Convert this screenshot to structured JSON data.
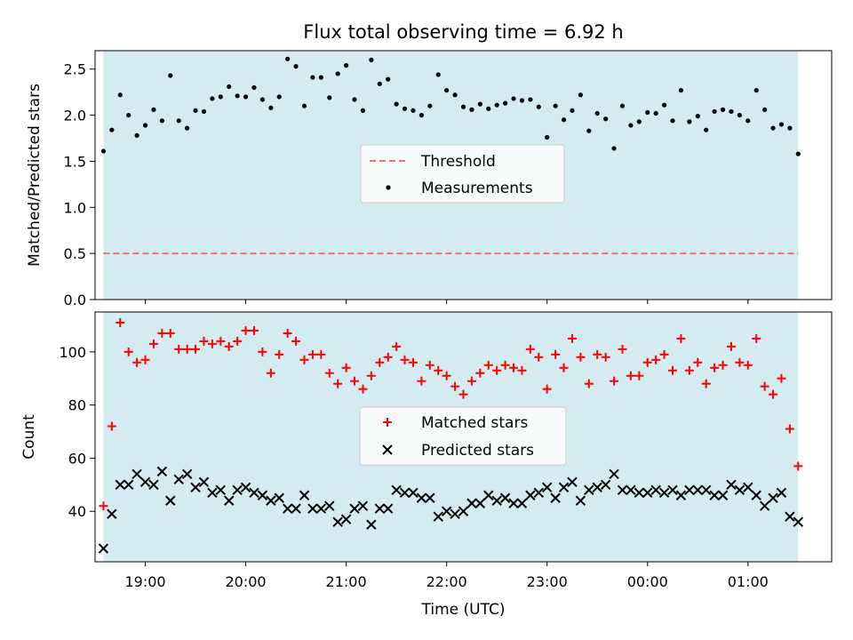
{
  "chart_data": [
    {
      "type": "scatter",
      "title": "Flux total observing time = 6.92 h",
      "xlabel": "",
      "ylabel": "Matched/Predicted stars",
      "ylim": [
        0.0,
        2.7
      ],
      "yticks": [
        "0.0",
        "0.5",
        "1.0",
        "1.5",
        "2.0",
        "2.5"
      ],
      "xlim": [
        "18:30",
        "01:50"
      ],
      "xticks": [
        "19:00",
        "20:00",
        "21:00",
        "22:00",
        "23:00",
        "00:00",
        "01:00"
      ],
      "shaded_range": [
        "18:35",
        "01:30"
      ],
      "shade_color": "#d4ebf1",
      "threshold": {
        "name": "Threshold",
        "value": 0.5,
        "color": "#f07070",
        "style": "dashed"
      },
      "legend": {
        "position": "center",
        "entries": [
          "Threshold",
          "Measurements"
        ]
      },
      "series": [
        {
          "name": "Measurements",
          "color": "#000000",
          "marker": "dot",
          "x": [
            "18:35",
            "18:40",
            "18:45",
            "18:50",
            "18:55",
            "19:00",
            "19:05",
            "19:10",
            "19:15",
            "19:20",
            "19:25",
            "19:30",
            "19:35",
            "19:40",
            "19:45",
            "19:50",
            "19:55",
            "20:00",
            "20:05",
            "20:10",
            "20:15",
            "20:20",
            "20:25",
            "20:30",
            "20:35",
            "20:40",
            "20:45",
            "20:50",
            "20:55",
            "21:00",
            "21:05",
            "21:10",
            "21:15",
            "21:20",
            "21:25",
            "21:30",
            "21:35",
            "21:40",
            "21:45",
            "21:50",
            "21:55",
            "22:00",
            "22:05",
            "22:10",
            "22:15",
            "22:20",
            "22:25",
            "22:30",
            "22:35",
            "22:40",
            "22:45",
            "22:50",
            "22:55",
            "23:00",
            "23:05",
            "23:10",
            "23:15",
            "23:20",
            "23:25",
            "23:30",
            "23:35",
            "23:40",
            "23:45",
            "23:50",
            "23:55",
            "00:00",
            "00:05",
            "00:10",
            "00:15",
            "00:20",
            "00:25",
            "00:30",
            "00:35",
            "00:40",
            "00:45",
            "00:50",
            "00:55",
            "01:00",
            "01:05",
            "01:10",
            "01:15",
            "01:20",
            "01:25",
            "01:30"
          ],
          "y": [
            1.61,
            1.84,
            2.22,
            2.0,
            1.78,
            1.89,
            2.06,
            1.94,
            2.43,
            1.94,
            1.86,
            2.05,
            2.04,
            2.18,
            2.2,
            2.31,
            2.21,
            2.2,
            2.3,
            2.17,
            2.08,
            2.2,
            2.61,
            2.53,
            2.1,
            2.41,
            2.41,
            2.19,
            2.45,
            2.54,
            2.17,
            2.05,
            2.6,
            2.34,
            2.39,
            2.12,
            2.07,
            2.05,
            2.0,
            2.1,
            2.44,
            2.27,
            2.22,
            2.09,
            2.06,
            2.12,
            2.07,
            2.11,
            2.13,
            2.18,
            2.16,
            2.17,
            2.09,
            1.76,
            2.1,
            1.95,
            2.05,
            2.22,
            1.83,
            2.02,
            1.96,
            1.64,
            2.1,
            1.89,
            1.93,
            2.03,
            2.02,
            2.11,
            1.94,
            2.27,
            1.93,
            1.99,
            1.84,
            2.04,
            2.06,
            2.04,
            2.0,
            1.94,
            2.27,
            2.06,
            1.86,
            1.9,
            1.86,
            1.58
          ]
        }
      ]
    },
    {
      "type": "scatter",
      "title": "",
      "xlabel": "Time (UTC)",
      "ylabel": "Count",
      "ylim": [
        21,
        115
      ],
      "yticks": [
        "40",
        "60",
        "80",
        "100"
      ],
      "xlim": [
        "18:30",
        "01:50"
      ],
      "xticks": [
        "19:00",
        "20:00",
        "21:00",
        "22:00",
        "23:00",
        "00:00",
        "01:00"
      ],
      "shaded_range": [
        "18:35",
        "01:30"
      ],
      "shade_color": "#d4ebf1",
      "legend": {
        "position": "center",
        "entries": [
          "Matched stars",
          "Predicted stars"
        ]
      },
      "series": [
        {
          "name": "Matched stars",
          "color": "#ff0000",
          "marker": "plus",
          "x": [
            "18:35",
            "18:40",
            "18:45",
            "18:50",
            "18:55",
            "19:00",
            "19:05",
            "19:10",
            "19:15",
            "19:20",
            "19:25",
            "19:30",
            "19:35",
            "19:40",
            "19:45",
            "19:50",
            "19:55",
            "20:00",
            "20:05",
            "20:10",
            "20:15",
            "20:20",
            "20:25",
            "20:30",
            "20:35",
            "20:40",
            "20:45",
            "20:50",
            "20:55",
            "21:00",
            "21:05",
            "21:10",
            "21:15",
            "21:20",
            "21:25",
            "21:30",
            "21:35",
            "21:40",
            "21:45",
            "21:50",
            "21:55",
            "22:00",
            "22:05",
            "22:10",
            "22:15",
            "22:20",
            "22:25",
            "22:30",
            "22:35",
            "22:40",
            "22:45",
            "22:50",
            "22:55",
            "23:00",
            "23:05",
            "23:10",
            "23:15",
            "23:20",
            "23:25",
            "23:30",
            "23:35",
            "23:40",
            "23:45",
            "23:50",
            "23:55",
            "00:00",
            "00:05",
            "00:10",
            "00:15",
            "00:20",
            "00:25",
            "00:30",
            "00:35",
            "00:40",
            "00:45",
            "00:50",
            "00:55",
            "01:00",
            "01:05",
            "01:10",
            "01:15",
            "01:20",
            "01:25",
            "01:30"
          ],
          "y": [
            42,
            72,
            111,
            100,
            96,
            97,
            103,
            107,
            107,
            101,
            101,
            101,
            104,
            103,
            104,
            102,
            104,
            108,
            108,
            100,
            92,
            99,
            107,
            104,
            97,
            99,
            99,
            92,
            88,
            94,
            89,
            86,
            91,
            96,
            98,
            102,
            97,
            96,
            89,
            95,
            93,
            91,
            87,
            84,
            89,
            92,
            95,
            93,
            95,
            94,
            93,
            101,
            98,
            86,
            99,
            94,
            105,
            98,
            88,
            99,
            98,
            89,
            101,
            91,
            91,
            96,
            97,
            99,
            93,
            105,
            93,
            96,
            88,
            94,
            95,
            102,
            96,
            95,
            105,
            87,
            84,
            90,
            71,
            57
          ]
        },
        {
          "name": "Predicted stars",
          "color": "#000000",
          "marker": "x",
          "x": [
            "18:35",
            "18:40",
            "18:45",
            "18:50",
            "18:55",
            "19:00",
            "19:05",
            "19:10",
            "19:15",
            "19:20",
            "19:25",
            "19:30",
            "19:35",
            "19:40",
            "19:45",
            "19:50",
            "19:55",
            "20:00",
            "20:05",
            "20:10",
            "20:15",
            "20:20",
            "20:25",
            "20:30",
            "20:35",
            "20:40",
            "20:45",
            "20:50",
            "20:55",
            "21:00",
            "21:05",
            "21:10",
            "21:15",
            "21:20",
            "21:25",
            "21:30",
            "21:35",
            "21:40",
            "21:45",
            "21:50",
            "21:55",
            "22:00",
            "22:05",
            "22:10",
            "22:15",
            "22:20",
            "22:25",
            "22:30",
            "22:35",
            "22:40",
            "22:45",
            "22:50",
            "22:55",
            "23:00",
            "23:05",
            "23:10",
            "23:15",
            "23:20",
            "23:25",
            "23:30",
            "23:35",
            "23:40",
            "23:45",
            "23:50",
            "23:55",
            "00:00",
            "00:05",
            "00:10",
            "00:15",
            "00:20",
            "00:25",
            "00:30",
            "00:35",
            "00:40",
            "00:45",
            "00:50",
            "00:55",
            "01:00",
            "01:05",
            "01:10",
            "01:15",
            "01:20",
            "01:25",
            "01:30"
          ],
          "y": [
            26,
            39,
            50,
            50,
            54,
            51,
            50,
            55,
            44,
            52,
            54,
            49,
            51,
            47,
            48,
            44,
            48,
            49,
            47,
            46,
            44,
            45,
            41,
            41,
            46,
            41,
            41,
            42,
            36,
            37,
            41,
            42,
            35,
            41,
            41,
            48,
            47,
            47,
            45,
            45,
            38,
            40,
            39,
            40,
            43,
            43,
            46,
            44,
            45,
            43,
            43,
            46,
            47,
            49,
            45,
            49,
            51,
            44,
            48,
            49,
            50,
            54,
            48,
            48,
            47,
            47,
            48,
            47,
            48,
            46,
            48,
            48,
            48,
            46,
            46,
            50,
            48,
            49,
            46,
            42,
            45,
            47,
            38,
            36
          ]
        }
      ]
    }
  ]
}
